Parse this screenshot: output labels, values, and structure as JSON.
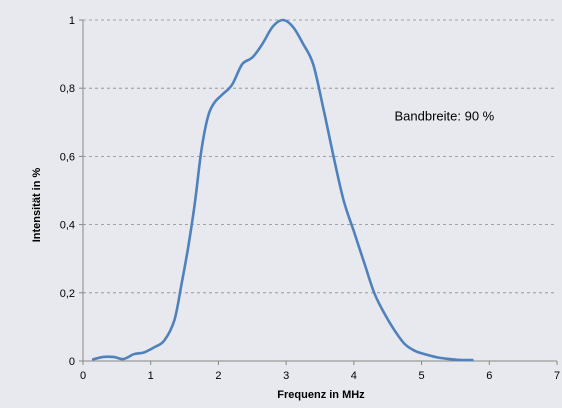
{
  "chart_data": {
    "type": "line",
    "title": "",
    "xlabel": "Frequenz in MHz",
    "ylabel": "Intensität in %",
    "xlim": [
      0,
      7
    ],
    "ylim": [
      0,
      1
    ],
    "grid": "horizontal dashed",
    "legend": "none",
    "x_ticks": [
      {
        "value": 0,
        "label": "0"
      },
      {
        "value": 1,
        "label": "1"
      },
      {
        "value": 2,
        "label": "2"
      },
      {
        "value": 3,
        "label": "3"
      },
      {
        "value": 4,
        "label": "4"
      },
      {
        "value": 5,
        "label": "5"
      },
      {
        "value": 6,
        "label": "6"
      },
      {
        "value": 7,
        "label": "7"
      }
    ],
    "y_ticks": [
      {
        "value": 0,
        "label": "0"
      },
      {
        "value": 0.2,
        "label": "0,2"
      },
      {
        "value": 0.4,
        "label": "0,4"
      },
      {
        "value": 0.6,
        "label": "0,6"
      },
      {
        "value": 0.8,
        "label": "0,8"
      },
      {
        "value": 1,
        "label": "1"
      }
    ],
    "annotation": {
      "text": "Bandbreite: 90 %",
      "x": 4.6,
      "y": 0.72
    },
    "series": [
      {
        "color": "#4f81bd",
        "x": [
          0.15,
          0.3,
          0.45,
          0.6,
          0.75,
          0.9,
          1.05,
          1.2,
          1.35,
          1.45,
          1.55,
          1.65,
          1.75,
          1.85,
          1.95,
          2.05,
          2.2,
          2.35,
          2.5,
          2.65,
          2.8,
          2.95,
          3.1,
          3.25,
          3.4,
          3.55,
          3.7,
          3.85,
          4.0,
          4.15,
          4.3,
          4.45,
          4.6,
          4.75,
          4.9,
          5.05,
          5.25,
          5.45,
          5.6,
          5.75
        ],
        "y": [
          0.005,
          0.012,
          0.012,
          0.006,
          0.02,
          0.025,
          0.04,
          0.06,
          0.12,
          0.22,
          0.33,
          0.46,
          0.62,
          0.72,
          0.76,
          0.78,
          0.81,
          0.87,
          0.89,
          0.93,
          0.98,
          1.0,
          0.98,
          0.93,
          0.87,
          0.74,
          0.6,
          0.47,
          0.38,
          0.29,
          0.2,
          0.14,
          0.09,
          0.05,
          0.03,
          0.02,
          0.01,
          0.005,
          0.003,
          0.003
        ]
      }
    ]
  }
}
